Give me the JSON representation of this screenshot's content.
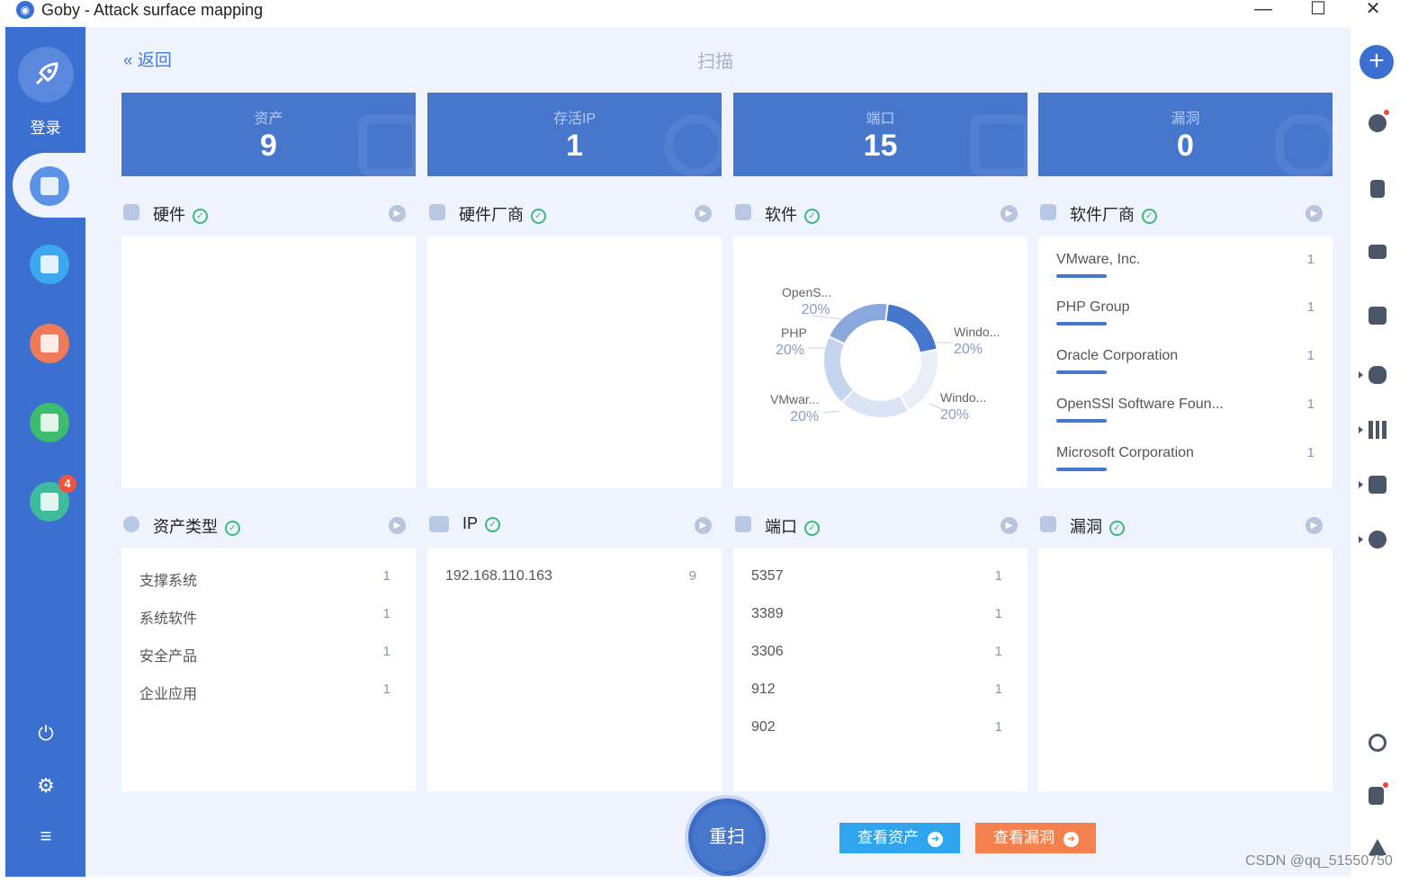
{
  "window": {
    "title": "Goby - Attack surface mapping",
    "minimize": "—",
    "maximize": "☐",
    "close": "✕"
  },
  "sidebar": {
    "login_label": "登录",
    "badge_count": "4",
    "item_colors": [
      "#5b93e8",
      "#3ca8f0",
      "#f07b5a",
      "#3dbb6e",
      "#3dbb9a"
    ]
  },
  "header": {
    "back_label": "返回",
    "back_icon": "«",
    "title": "扫描"
  },
  "stats": [
    {
      "label": "资产",
      "value": "9"
    },
    {
      "label": "存活IP",
      "value": "1"
    },
    {
      "label": "端口",
      "value": "15"
    },
    {
      "label": "漏洞",
      "value": "0"
    }
  ],
  "sections": {
    "hardware": {
      "title": "硬件"
    },
    "hardware_vendor": {
      "title": "硬件厂商"
    },
    "software": {
      "title": "软件",
      "chart_data": {
        "type": "pie",
        "title": "",
        "categories": [
          "OpenS...",
          "Windo...",
          "Windo...",
          "VMwar...",
          "PHP"
        ],
        "labels_pct": [
          "20%",
          "20%",
          "20%",
          "20%",
          "20%"
        ],
        "values": [
          20,
          20,
          20,
          20,
          20
        ]
      }
    },
    "software_vendor": {
      "title": "软件厂商",
      "items": [
        {
          "name": "VMware, Inc.",
          "count": "1"
        },
        {
          "name": "PHP Group",
          "count": "1"
        },
        {
          "name": "Oracle Corporation",
          "count": "1"
        },
        {
          "name": "OpenSSl Software Foun...",
          "count": "1"
        },
        {
          "name": "Microsoft Corporation",
          "count": "1"
        }
      ]
    },
    "asset_type": {
      "title": "资产类型",
      "items": [
        {
          "name": "支撑系统",
          "count": "1"
        },
        {
          "name": "系统软件",
          "count": "1"
        },
        {
          "name": "安全产品",
          "count": "1"
        },
        {
          "name": "企业应用",
          "count": "1"
        }
      ]
    },
    "ip": {
      "title": "IP",
      "items": [
        {
          "name": "192.168.110.163",
          "count": "9"
        }
      ]
    },
    "port": {
      "title": "端口",
      "items": [
        {
          "name": "5357",
          "count": "1"
        },
        {
          "name": "3389",
          "count": "1"
        },
        {
          "name": "3306",
          "count": "1"
        },
        {
          "name": "912",
          "count": "1"
        },
        {
          "name": "902",
          "count": "1"
        }
      ]
    },
    "vuln": {
      "title": "漏洞"
    }
  },
  "actions": {
    "rescan": "重扫",
    "view_assets": "查看资产",
    "view_vulns": "查看漏洞",
    "view_assets_color": "#2fa4ef",
    "view_vulns_color": "#f5824e"
  },
  "rightbar": {
    "add_icon": "+"
  },
  "footer": {
    "watermark": "CSDN @qq_51550750"
  }
}
